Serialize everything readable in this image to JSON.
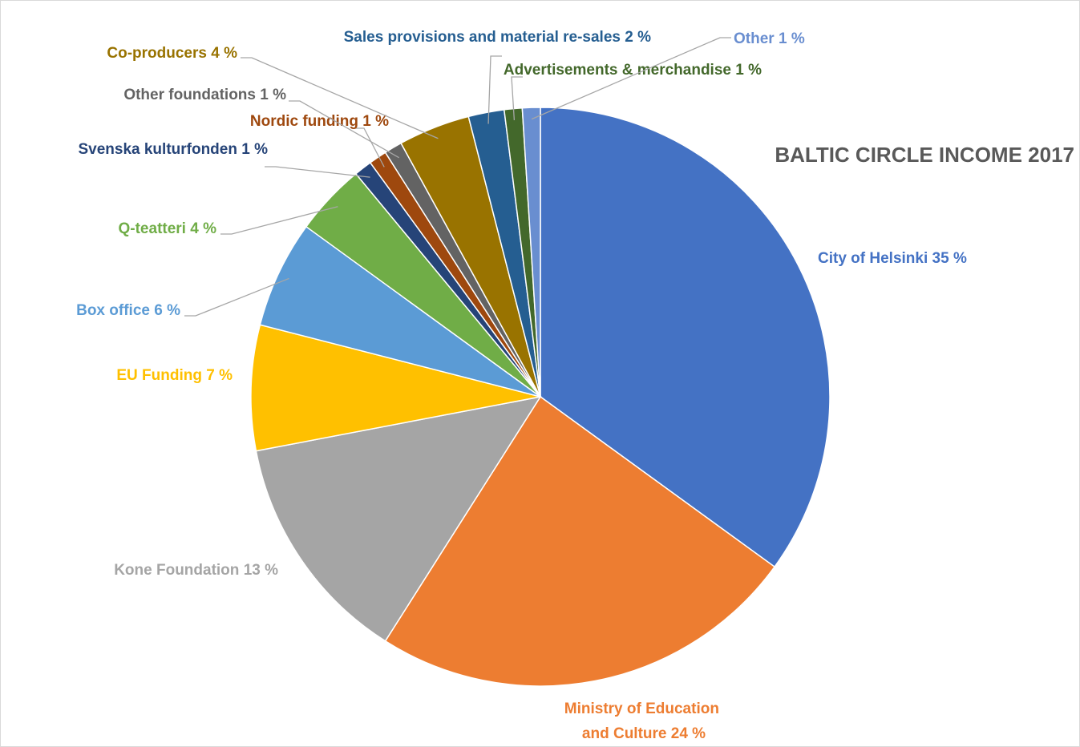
{
  "chart_data": {
    "type": "pie",
    "title": "BALTIC CIRCLE INCOME 2017",
    "categories": [
      "City of Helsinki",
      "Ministry of Education and Culture",
      "Kone Foundation",
      "EU Funding",
      "Box office",
      "Q-teatteri",
      "Svenska kulturfonden",
      "Nordic funding",
      "Other foundations",
      "Co-producers",
      "Sales provisions and material re-sales",
      "Advertisements & merchandise",
      "Other"
    ],
    "values": [
      35,
      24,
      13,
      7,
      6,
      4,
      1,
      1,
      1,
      4,
      2,
      1,
      1
    ],
    "value_labels": [
      "35 %",
      "24 %",
      "13 %",
      "7 %",
      "6 %",
      "4 %",
      "1 %",
      "1 %",
      "1 %",
      "4 %",
      "2 %",
      "1 %",
      "1 %"
    ],
    "colors": [
      "#4472c4",
      "#ed7d31",
      "#a5a5a5",
      "#ffc000",
      "#5b9bd5",
      "#70ad47",
      "#264478",
      "#9e480e",
      "#636363",
      "#997300",
      "#255e91",
      "#43682b",
      "#698ed0"
    ]
  }
}
